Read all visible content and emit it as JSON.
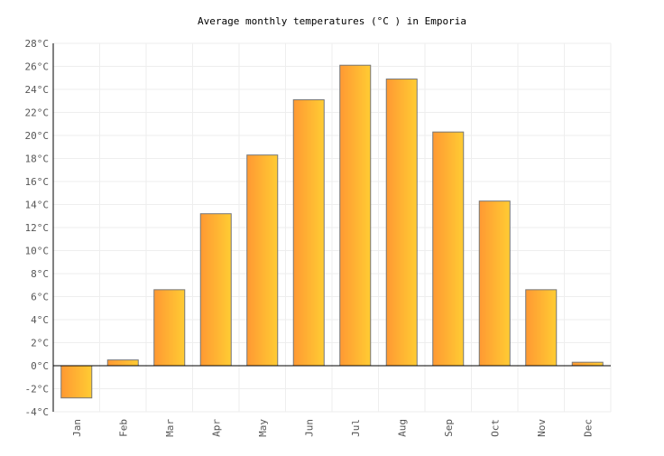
{
  "chart_data": {
    "type": "bar",
    "title": "Average monthly temperatures (°C ) in Emporia",
    "categories": [
      "Jan",
      "Feb",
      "Mar",
      "Apr",
      "May",
      "Jun",
      "Jul",
      "Aug",
      "Sep",
      "Oct",
      "Nov",
      "Dec"
    ],
    "values": [
      -2.8,
      0.5,
      6.6,
      13.2,
      18.3,
      23.1,
      26.1,
      24.9,
      20.3,
      14.3,
      6.6,
      0.3
    ],
    "unit": "°C",
    "ylim": [
      -4,
      28
    ],
    "yticks": [
      -4,
      -2,
      0,
      2,
      4,
      6,
      8,
      10,
      12,
      14,
      16,
      18,
      20,
      22,
      24,
      26,
      28
    ],
    "grid": true,
    "legend": "none",
    "colors": {
      "bar_start": "#ff9933",
      "bar_end": "#ffcc33",
      "bar_border": "#777777",
      "grid": "#eeeeee"
    }
  }
}
